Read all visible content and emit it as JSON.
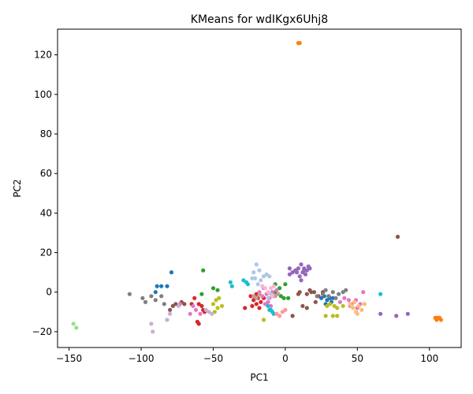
{
  "chart_data": {
    "type": "scatter",
    "title": "KMeans for wdIKgx6Uhj8",
    "xlabel": "PC1",
    "ylabel": "PC2",
    "xlim": [
      -158,
      122
    ],
    "ylim": [
      -28,
      133
    ],
    "xticks": [
      -150,
      -100,
      -50,
      0,
      50,
      100
    ],
    "yticks": [
      -20,
      0,
      20,
      40,
      60,
      80,
      100,
      120
    ],
    "grid": false,
    "legend": "none",
    "series": [
      {
        "color": "#1f77b4",
        "points": [
          [
            -89,
            3
          ],
          [
            -86,
            3
          ],
          [
            -82,
            3
          ],
          [
            -79,
            10
          ],
          [
            -90,
            0
          ],
          [
            25,
            -3
          ],
          [
            27,
            -2
          ],
          [
            29,
            -4
          ],
          [
            30,
            -2
          ],
          [
            31,
            -3
          ],
          [
            33,
            -3
          ],
          [
            28,
            -6
          ],
          [
            32,
            -5
          ]
        ]
      },
      {
        "color": "#ff7f0e",
        "points": [
          [
            10,
            126
          ],
          [
            9,
            126
          ],
          [
            104,
            -13
          ],
          [
            105,
            -14
          ],
          [
            106,
            -13
          ],
          [
            107,
            -13
          ],
          [
            108,
            -14
          ],
          [
            105,
            -13
          ]
        ]
      },
      {
        "color": "#2ca02c",
        "points": [
          [
            -57,
            11
          ],
          [
            -50,
            2
          ],
          [
            -47,
            1
          ],
          [
            -58,
            -1
          ],
          [
            -7,
            4
          ],
          [
            0,
            4
          ],
          [
            -5,
            -1
          ],
          [
            -3,
            -2
          ],
          [
            -1,
            -3
          ],
          [
            2,
            -3
          ],
          [
            -7,
            0
          ],
          [
            -4,
            2
          ]
        ]
      },
      {
        "color": "#d62728",
        "points": [
          [
            -63,
            -3
          ],
          [
            -60,
            -6
          ],
          [
            -58,
            -7
          ],
          [
            -57,
            -9
          ],
          [
            -56,
            -10
          ],
          [
            -61,
            -15
          ],
          [
            -60,
            -16
          ],
          [
            -65,
            -6
          ],
          [
            -28,
            -8
          ],
          [
            -24,
            -2
          ],
          [
            -22,
            -4
          ],
          [
            -20,
            -6
          ],
          [
            -18,
            -8
          ],
          [
            -17,
            -5
          ],
          [
            -19,
            -3
          ],
          [
            -23,
            -7
          ],
          [
            -20,
            -1
          ],
          [
            -15,
            -3
          ]
        ]
      },
      {
        "color": "#9467bd",
        "points": [
          [
            3,
            12
          ],
          [
            5,
            10
          ],
          [
            7,
            11
          ],
          [
            9,
            12
          ],
          [
            11,
            14
          ],
          [
            13,
            12
          ],
          [
            15,
            11
          ],
          [
            16,
            13
          ],
          [
            17,
            12
          ],
          [
            10,
            8
          ],
          [
            12,
            10
          ],
          [
            14,
            9
          ],
          [
            11,
            6
          ],
          [
            13,
            11
          ],
          [
            8,
            10
          ],
          [
            3,
            9
          ],
          [
            66,
            -11
          ],
          [
            77,
            -12
          ],
          [
            85,
            -11
          ]
        ]
      },
      {
        "color": "#8c564b",
        "points": [
          [
            -80,
            -9
          ],
          [
            -78,
            -7
          ],
          [
            -76,
            -6
          ],
          [
            -72,
            -5
          ],
          [
            -70,
            -6
          ],
          [
            9,
            -1
          ],
          [
            10,
            0
          ],
          [
            15,
            -1
          ],
          [
            17,
            1
          ],
          [
            20,
            0
          ],
          [
            21,
            -5
          ],
          [
            23,
            -2
          ],
          [
            26,
            0
          ],
          [
            18,
            0
          ],
          [
            12,
            -7
          ],
          [
            15,
            -8
          ],
          [
            78,
            28
          ],
          [
            5,
            -12
          ]
        ]
      },
      {
        "color": "#e377c2",
        "points": [
          [
            -66,
            -11
          ],
          [
            -64,
            -7
          ],
          [
            -62,
            -9
          ],
          [
            -59,
            -11
          ],
          [
            -73,
            -6
          ],
          [
            -15,
            2
          ],
          [
            -13,
            -1
          ],
          [
            -11,
            -3
          ],
          [
            -9,
            0
          ],
          [
            -8,
            -2
          ],
          [
            -6,
            1
          ],
          [
            -16,
            -2
          ],
          [
            -14,
            -6
          ],
          [
            -12,
            -5
          ],
          [
            -10,
            -7
          ],
          [
            -18,
            0
          ],
          [
            38,
            -5
          ],
          [
            41,
            -3
          ],
          [
            44,
            -4
          ],
          [
            46,
            -6
          ],
          [
            48,
            -5
          ],
          [
            50,
            -8
          ],
          [
            52,
            -6
          ],
          [
            54,
            0
          ],
          [
            45,
            -7
          ],
          [
            49,
            -4
          ]
        ]
      },
      {
        "color": "#7f7f7f",
        "points": [
          [
            -108,
            -1
          ],
          [
            -99,
            -3
          ],
          [
            -97,
            -5
          ],
          [
            -93,
            -2
          ],
          [
            -90,
            -4
          ],
          [
            -86,
            -2
          ],
          [
            -84,
            -6
          ],
          [
            28,
            1
          ],
          [
            30,
            -2
          ],
          [
            35,
            -3
          ],
          [
            37,
            -1
          ],
          [
            40,
            0
          ],
          [
            42,
            1
          ],
          [
            33,
            0
          ],
          [
            26,
            -1
          ],
          [
            22,
            -2
          ]
        ]
      },
      {
        "color": "#bcbd22",
        "points": [
          [
            -48,
            -4
          ],
          [
            -46,
            -3
          ],
          [
            -44,
            -7
          ],
          [
            -49,
            -10
          ],
          [
            -50,
            -6
          ],
          [
            -47,
            -8
          ],
          [
            29,
            -7
          ],
          [
            31,
            -6
          ],
          [
            34,
            -7
          ],
          [
            36,
            -8
          ],
          [
            40,
            -7
          ],
          [
            28,
            -12
          ],
          [
            33,
            -12
          ],
          [
            36,
            -12
          ],
          [
            -15,
            -14
          ]
        ]
      },
      {
        "color": "#17becf",
        "points": [
          [
            -38,
            5
          ],
          [
            -37,
            3
          ],
          [
            -29,
            6
          ],
          [
            -27,
            5
          ],
          [
            -26,
            4
          ],
          [
            -10,
            -9
          ],
          [
            -9,
            -10
          ],
          [
            -8,
            -11
          ],
          [
            -12,
            -7
          ],
          [
            -11,
            -9
          ],
          [
            66,
            -1
          ]
        ]
      },
      {
        "color": "#aec7e8",
        "points": [
          [
            -22,
            10
          ],
          [
            -20,
            14
          ],
          [
            -18,
            11
          ],
          [
            -15,
            8
          ],
          [
            -13,
            9
          ],
          [
            -11,
            8
          ],
          [
            -19,
            4
          ],
          [
            -21,
            7
          ],
          [
            -23,
            7
          ],
          [
            -10,
            -1
          ],
          [
            -12,
            -3
          ],
          [
            -17,
            6
          ]
        ]
      },
      {
        "color": "#ffbb78",
        "points": [
          [
            45,
            -6
          ],
          [
            47,
            -8
          ],
          [
            49,
            -10
          ],
          [
            51,
            -7
          ],
          [
            53,
            -9
          ],
          [
            55,
            -6
          ],
          [
            48,
            -5
          ],
          [
            50,
            -11
          ],
          [
            46,
            -7
          ]
        ]
      },
      {
        "color": "#98df8a",
        "points": [
          [
            -147,
            -16
          ],
          [
            -145,
            -18
          ]
        ]
      },
      {
        "color": "#ff9896",
        "points": [
          [
            -6,
            -11
          ],
          [
            -4,
            -12
          ],
          [
            -2,
            -10
          ],
          [
            0,
            -9
          ]
        ]
      },
      {
        "color": "#c5b0d5",
        "points": [
          [
            -93,
            -16
          ],
          [
            -92,
            -20
          ],
          [
            -82,
            -14
          ],
          [
            -80,
            -11
          ],
          [
            -55,
            -9
          ],
          [
            -53,
            -10
          ],
          [
            -51,
            -11
          ],
          [
            -74,
            -7
          ]
        ]
      },
      {
        "color": "#c49c94",
        "points": [
          [
            -22,
            -2
          ],
          [
            -20,
            -3
          ],
          [
            -18,
            -1
          ],
          [
            -7,
            -2
          ],
          [
            -5,
            -1
          ]
        ]
      },
      {
        "color": "#f7b6d2",
        "points": [
          [
            -12,
            0
          ],
          [
            -10,
            2
          ],
          [
            -8,
            3
          ],
          [
            -16,
            3
          ],
          [
            -14,
            2
          ],
          [
            -9,
            -2
          ]
        ]
      }
    ]
  }
}
